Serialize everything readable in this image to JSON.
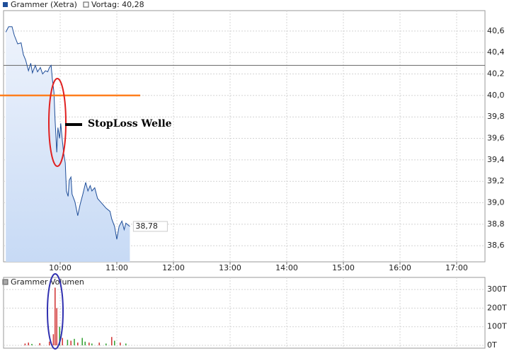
{
  "chart_data": [
    {
      "type": "line",
      "title": "Grammer (Xetra)",
      "color": "#1f4e99",
      "prev_close_label": "Vortag: 40,28",
      "prev_close": 40.28,
      "hline": 40.0,
      "hline_color": "#ff7f1e",
      "last_label": "38,78",
      "annotation": "StopLoss Welle",
      "xlim": [
        9,
        17.5
      ],
      "xticks": [
        {
          "value": 10,
          "label": "10:00"
        },
        {
          "value": 11,
          "label": "11:00"
        },
        {
          "value": 12,
          "label": "12:00"
        },
        {
          "value": 13,
          "label": "13:00"
        },
        {
          "value": 14,
          "label": "14:00"
        },
        {
          "value": 15,
          "label": "15:00"
        },
        {
          "value": 16,
          "label": "16:00"
        },
        {
          "value": 17,
          "label": "17:00"
        }
      ],
      "ylim": [
        38.45,
        40.79
      ],
      "yticks": [
        {
          "value": 38.6,
          "label": "38,6"
        },
        {
          "value": 38.8,
          "label": "38,8"
        },
        {
          "value": 39.0,
          "label": "39,0"
        },
        {
          "value": 39.2,
          "label": "39,2"
        },
        {
          "value": 39.4,
          "label": "39,4"
        },
        {
          "value": 39.6,
          "label": "39,6"
        },
        {
          "value": 39.8,
          "label": "39,8"
        },
        {
          "value": 40.0,
          "label": "40,0"
        },
        {
          "value": 40.2,
          "label": "40,2"
        },
        {
          "value": 40.4,
          "label": "40,4"
        },
        {
          "value": 40.6,
          "label": "40,6"
        }
      ],
      "grid": true,
      "x": [
        9.04,
        9.09,
        9.15,
        9.19,
        9.25,
        9.31,
        9.35,
        9.39,
        9.44,
        9.48,
        9.51,
        9.56,
        9.6,
        9.65,
        9.69,
        9.74,
        9.78,
        9.81,
        9.84,
        9.86,
        9.89,
        9.91,
        9.94,
        9.96,
        9.99,
        10.01,
        10.04,
        10.06,
        10.09,
        10.11,
        10.14,
        10.16,
        10.19,
        10.21,
        10.26,
        10.31,
        10.35,
        10.4,
        10.45,
        10.49,
        10.53,
        10.56,
        10.61,
        10.66,
        10.71,
        10.76,
        10.81,
        10.88,
        10.91,
        10.96,
        11.0,
        11.04,
        11.09,
        11.13,
        11.16,
        11.23
      ],
      "values": [
        40.59,
        40.64,
        40.64,
        40.56,
        40.48,
        40.49,
        40.38,
        40.33,
        40.23,
        40.3,
        40.21,
        40.28,
        40.22,
        40.26,
        40.2,
        40.23,
        40.22,
        40.26,
        40.28,
        40.16,
        40.03,
        39.77,
        39.47,
        39.7,
        39.6,
        39.74,
        39.57,
        39.47,
        39.37,
        39.11,
        39.06,
        39.21,
        39.24,
        39.08,
        39.01,
        38.88,
        38.98,
        39.08,
        39.19,
        39.11,
        39.16,
        39.11,
        39.14,
        39.04,
        39.01,
        38.98,
        38.95,
        38.92,
        38.85,
        38.78,
        38.66,
        38.78,
        38.83,
        38.75,
        38.81,
        38.78
      ]
    },
    {
      "type": "bar",
      "title": "Grammer Volumen",
      "xlim": [
        9,
        17.5
      ],
      "ylim": [
        -15,
        365
      ],
      "yticks": [
        {
          "value": 0,
          "label": "0T"
        },
        {
          "value": 100,
          "label": "100T"
        },
        {
          "value": 200,
          "label": "200T"
        },
        {
          "value": 300,
          "label": "300T"
        }
      ],
      "x": [
        9.38,
        9.44,
        9.5,
        9.64,
        9.81,
        9.88,
        9.91,
        9.94,
        9.99,
        10.04,
        10.13,
        10.19,
        10.25,
        10.31,
        10.39,
        10.44,
        10.51,
        10.56,
        10.69,
        10.81,
        10.91,
        10.96,
        11.06,
        11.16
      ],
      "values": [
        10,
        15,
        8,
        12,
        20,
        60,
        310,
        200,
        100,
        40,
        30,
        25,
        35,
        15,
        40,
        20,
        15,
        10,
        15,
        10,
        45,
        25,
        15,
        10
      ],
      "colors": [
        "#d03030",
        "#d03030",
        "#30a030",
        "#d03030",
        "#d03030",
        "#d03030",
        "#d03030",
        "#d03030",
        "#30a030",
        "#d03030",
        "#30a030",
        "#d03030",
        "#30a030",
        "#d03030",
        "#30a030",
        "#30a030",
        "#d03030",
        "#30a030",
        "#d03030",
        "#30a030",
        "#d03030",
        "#30a030",
        "#d03030",
        "#30a030"
      ]
    }
  ]
}
